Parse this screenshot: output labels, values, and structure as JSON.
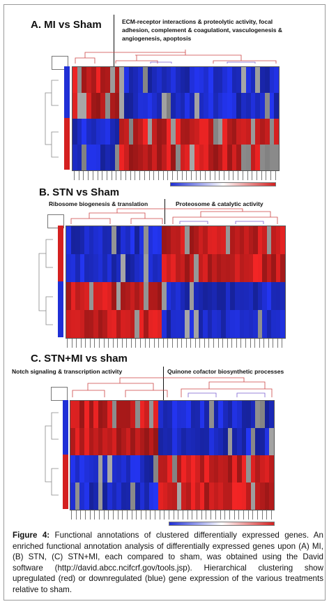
{
  "figure": {
    "panels": [
      {
        "id": "A",
        "title": "A.  MI vs Sham",
        "annotations": [
          "ECM-receptor interactions & proteolytic activity, focal adhesion, complement & coagulationt, vasculogenesis & angiogenesis, apoptosis"
        ],
        "rows": 4,
        "cols": 44,
        "block_split_col": 10,
        "row_groups": [
          "blue",
          "blue",
          "red",
          "red"
        ]
      },
      {
        "id": "B",
        "title": "B. STN vs Sham",
        "annotations": [
          "Ribosome biogenesis & translation",
          "Proteosome & catalytic activity"
        ],
        "rows": 4,
        "cols": 48,
        "block_split_col": 21,
        "row_groups": [
          "red",
          "red",
          "blue",
          "blue"
        ]
      },
      {
        "id": "C",
        "title": "C. STN+MI vs sham",
        "annotations": [
          "Notch signaling & transcription activity",
          "Quinone cofactor biosynthetic processes"
        ],
        "rows": 4,
        "cols": 44,
        "block_split_col": 19,
        "row_groups": [
          "blue",
          "blue",
          "red",
          "red"
        ]
      }
    ],
    "colors": {
      "up": "#d42020",
      "down": "#1f2fd6",
      "neutral": "#8c8c8c"
    },
    "caption": {
      "label": "Figure 4:",
      "text": " Functional annotations of clustered differentially expressed genes. An enriched functional annotation analysis of differentially expressed genes upon (A) MI, (B) STN, (C) STN+MI, each compared to sham, was obtained using the David software (http://david.abcc.ncifcrf.gov/tools.jsp). Hierarchical clustering show upregulated (red) or downregulated (blue) gene expression of the various treatments relative to sham."
    }
  }
}
